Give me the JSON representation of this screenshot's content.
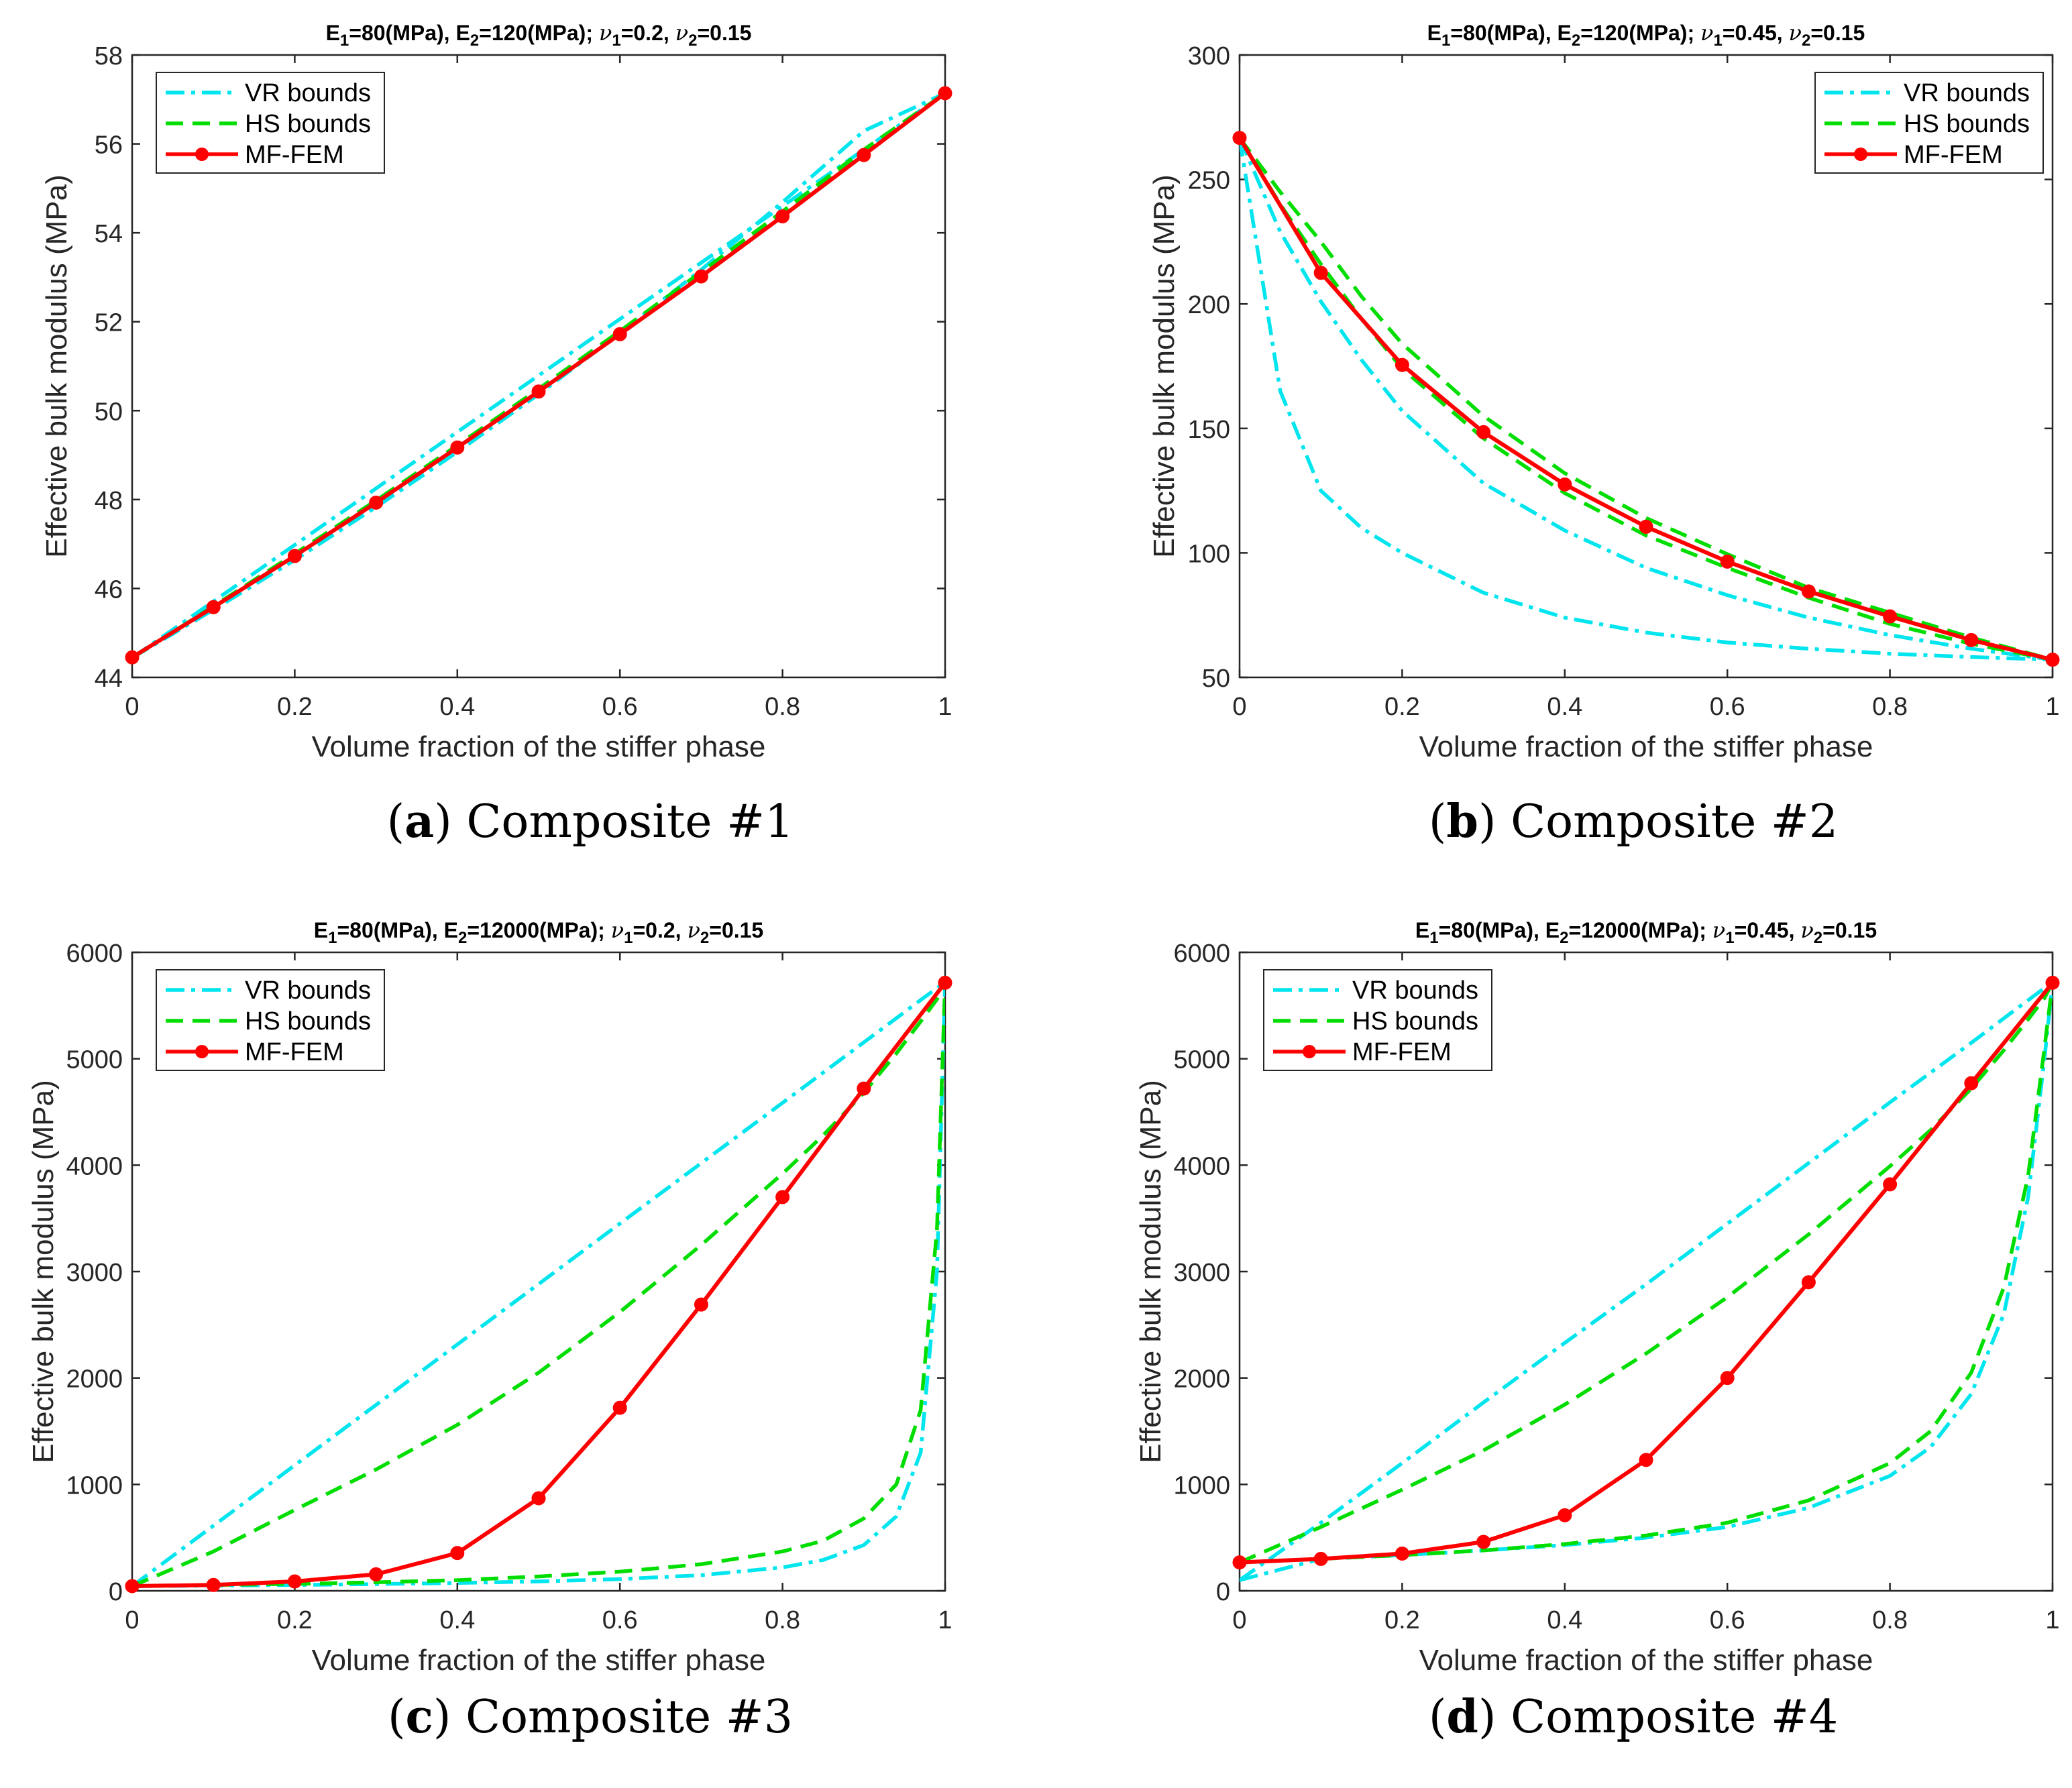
{
  "figure": {
    "panels": [
      {
        "letter": "a",
        "caption": "Composite #1"
      },
      {
        "letter": "b",
        "caption": "Composite #2"
      },
      {
        "letter": "c",
        "caption": "Composite #3"
      },
      {
        "letter": "d",
        "caption": "Composite #4"
      }
    ]
  },
  "colors": {
    "vr": "#00E5EE",
    "hs": "#00DD00",
    "fem": "#FF0000",
    "axis": "#262626"
  },
  "chart_data": [
    {
      "type": "line",
      "title": "E1=80(MPa), E2=120(MPa); ν1=0.2, ν2=0.15",
      "title_parts": {
        "e1": "=80(MPa), E",
        "e2": "=120(MPa); ",
        "nu1": "=0.2, ",
        "nu2": "=0.15"
      },
      "xlabel": "Volume fraction of the stiffer phase",
      "ylabel": "Effective bulk modulus (MPa)",
      "xlim": [
        0,
        1
      ],
      "ylim": [
        44,
        58
      ],
      "xticks": [
        "0",
        "0.2",
        "0.4",
        "0.6",
        "0.8",
        "1"
      ],
      "yticks": [
        "44",
        "46",
        "48",
        "50",
        "52",
        "54",
        "56",
        "58"
      ],
      "legend": [
        "VR bounds",
        "HS bounds",
        "MF-FEM"
      ],
      "legend_position": "top-left",
      "x": [
        0,
        0.1,
        0.2,
        0.3,
        0.4,
        0.5,
        0.6,
        0.7,
        0.8,
        0.9,
        1
      ],
      "series": [
        {
          "name": "VR upper",
          "kind": "vr",
          "values": [
            44.44,
            45.71,
            46.98,
            48.25,
            49.52,
            50.79,
            52.06,
            53.33,
            54.6,
            55.87,
            57.14
          ]
        },
        {
          "name": "VR lower",
          "kind": "vr",
          "values": [
            44.44,
            45.52,
            46.64,
            47.83,
            49.07,
            50.37,
            51.74,
            53.17,
            54.69,
            56.29,
            57.14
          ]
        },
        {
          "name": "HS upper",
          "kind": "hs",
          "values": [
            44.44,
            45.6,
            46.78,
            47.98,
            49.22,
            50.49,
            51.79,
            53.12,
            54.48,
            55.87,
            57.14
          ]
        },
        {
          "name": "HS lower",
          "kind": "hs",
          "values": [
            44.44,
            45.59,
            46.77,
            47.97,
            49.2,
            50.46,
            51.75,
            53.07,
            54.42,
            55.82,
            57.14
          ]
        },
        {
          "name": "MF-FEM",
          "kind": "fem",
          "values": [
            44.45,
            45.58,
            46.73,
            47.93,
            49.17,
            50.43,
            51.72,
            53.02,
            54.37,
            55.75,
            57.14
          ]
        }
      ]
    },
    {
      "type": "line",
      "title": "E1=80(MPa), E2=120(MPa); ν1=0.45, ν2=0.15",
      "title_parts": {
        "e1": "=80(MPa), E",
        "e2": "=120(MPa); ",
        "nu1": "=0.45, ",
        "nu2": "=0.15"
      },
      "xlabel": "Volume fraction of the stiffer phase",
      "ylabel": "Effective bulk modulus (MPa)",
      "xlim": [
        0,
        1
      ],
      "ylim": [
        50,
        300
      ],
      "xticks": [
        "0",
        "0.2",
        "0.4",
        "0.6",
        "0.8",
        "1"
      ],
      "yticks": [
        "50",
        "100",
        "150",
        "200",
        "250",
        "300"
      ],
      "legend": [
        "VR bounds",
        "HS bounds",
        "MF-FEM"
      ],
      "legend_position": "top-right",
      "x": [
        0,
        0.05,
        0.1,
        0.15,
        0.2,
        0.3,
        0.4,
        0.5,
        0.6,
        0.7,
        0.8,
        0.9,
        1
      ],
      "series": [
        {
          "name": "VR upper",
          "kind": "vr",
          "values": [
            266.7,
            229.0,
            201.0,
            177.5,
            157.0,
            128.0,
            109.0,
            94.0,
            83.0,
            74.0,
            67.0,
            61.5,
            57.1
          ]
        },
        {
          "name": "VR lower",
          "kind": "vr",
          "values": [
            266.7,
            165.0,
            125.0,
            110.0,
            100.0,
            84.0,
            74.0,
            68.0,
            64.0,
            61.5,
            59.5,
            58.2,
            57.1
          ]
        },
        {
          "name": "HS upper",
          "kind": "hs",
          "values": [
            266.7,
            245.0,
            225.0,
            203.0,
            184.0,
            155.0,
            132.0,
            114.0,
            99.5,
            86.0,
            76.0,
            66.0,
            57.1
          ]
        },
        {
          "name": "HS lower",
          "kind": "hs",
          "values": [
            266.7,
            240.0,
            216.0,
            194.0,
            174.0,
            146.0,
            124.0,
            107.0,
            94.0,
            82.0,
            71.5,
            63.5,
            57.1
          ]
        },
        {
          "name": "MF-FEM",
          "kind": "fem",
          "values": [
            266.7,
            null,
            212.5,
            null,
            175.5,
            148.5,
            127.5,
            110.5,
            96.5,
            84.5,
            74.5,
            65.0,
            57.1
          ]
        }
      ]
    },
    {
      "type": "line",
      "title": "E1=80(MPa), E2=12000(MPa); ν1=0.2, ν2=0.15",
      "title_parts": {
        "e1": "=80(MPa), E",
        "e2": "=12000(MPa); ",
        "nu1": "=0.2, ",
        "nu2": "=0.15"
      },
      "xlabel": "Volume fraction of the stiffer phase",
      "ylabel": "Effective bulk modulus (MPa)",
      "xlim": [
        0,
        1
      ],
      "ylim": [
        0,
        6000
      ],
      "xticks": [
        "0",
        "0.2",
        "0.4",
        "0.6",
        "0.8",
        "1"
      ],
      "yticks": [
        "0",
        "1000",
        "2000",
        "3000",
        "4000",
        "5000",
        "6000"
      ],
      "legend": [
        "VR bounds",
        "HS bounds",
        "MF-FEM"
      ],
      "legend_position": "top-left",
      "x": [
        0,
        0.1,
        0.2,
        0.3,
        0.4,
        0.5,
        0.6,
        0.7,
        0.8,
        0.85,
        0.9,
        0.94,
        0.97,
        0.99,
        1
      ],
      "series": [
        {
          "name": "VR upper",
          "kind": "vr",
          "values": [
            44.4,
            612,
            1180,
            1747,
            2315,
            2883,
            3451,
            4019,
            4586,
            4870,
            5154,
            5381,
            5552,
            5665,
            5714
          ]
        },
        {
          "name": "VR lower",
          "kind": "vr",
          "values": [
            44.4,
            49,
            55,
            63,
            74,
            88,
            110,
            147,
            220,
            290,
            430,
            700,
            1300,
            3000,
            5714
          ]
        },
        {
          "name": "HS upper",
          "kind": "hs",
          "values": [
            44.4,
            370,
            760,
            1140,
            1560,
            2050,
            2620,
            3250,
            3920,
            4280,
            4680,
            5050,
            5350,
            5560,
            5714
          ]
        },
        {
          "name": "HS lower",
          "kind": "hs",
          "values": [
            44.4,
            55,
            65,
            80,
            100,
            135,
            180,
            250,
            370,
            470,
            680,
            1000,
            1700,
            3400,
            5714
          ]
        },
        {
          "name": "MF-FEM",
          "kind": "fem",
          "values": [
            44.4,
            55,
            88,
            155,
            355,
            870,
            1720,
            2690,
            3700,
            null,
            4720,
            null,
            null,
            null,
            5714
          ]
        }
      ]
    },
    {
      "type": "line",
      "title": "E1=80(MPa), E2=12000(MPa); ν1=0.45, ν2=0.15",
      "title_parts": {
        "e1": "=80(MPa), E",
        "e2": "=12000(MPa); ",
        "nu1": "=0.45, ",
        "nu2": "=0.15"
      },
      "xlabel": "Volume fraction of the stiffer phase",
      "ylabel": "Effective bulk modulus (MPa)",
      "xlim": [
        0,
        1
      ],
      "ylim": [
        0,
        6000
      ],
      "xticks": [
        "0",
        "0.2",
        "0.4",
        "0.6",
        "0.8",
        "1"
      ],
      "yticks": [
        "0",
        "1000",
        "2000",
        "3000",
        "4000",
        "5000",
        "6000"
      ],
      "legend": [
        "VR bounds",
        "HS bounds",
        "MF-FEM"
      ],
      "legend_position": "top-left",
      "x": [
        0,
        0.1,
        0.2,
        0.3,
        0.4,
        0.5,
        0.6,
        0.7,
        0.8,
        0.85,
        0.9,
        0.94,
        0.97,
        0.99,
        1
      ],
      "series": [
        {
          "name": "VR upper",
          "kind": "vr",
          "values": [
            100,
            640,
            1200,
            1770,
            2330,
            2880,
            3450,
            4020,
            4590,
            4870,
            5150,
            5380,
            5550,
            5665,
            5714
          ]
        },
        {
          "name": "VR lower",
          "kind": "vr",
          "values": [
            100,
            300,
            335,
            380,
            430,
            500,
            600,
            780,
            1080,
            1350,
            1850,
            2600,
            3700,
            5000,
            5714
          ]
        },
        {
          "name": "HS upper",
          "kind": "hs",
          "values": [
            267,
            600,
            950,
            1320,
            1750,
            2230,
            2760,
            3350,
            3990,
            4330,
            4720,
            5080,
            5370,
            5570,
            5714
          ]
        },
        {
          "name": "HS lower",
          "kind": "hs",
          "values": [
            267,
            300,
            335,
            380,
            440,
            520,
            640,
            850,
            1200,
            1500,
            2050,
            2850,
            3900,
            5100,
            5714
          ]
        },
        {
          "name": "MF-FEM",
          "kind": "fem",
          "values": [
            267,
            300,
            350,
            460,
            710,
            1230,
            2000,
            2900,
            3820,
            null,
            4770,
            null,
            null,
            null,
            5714
          ]
        }
      ]
    }
  ]
}
